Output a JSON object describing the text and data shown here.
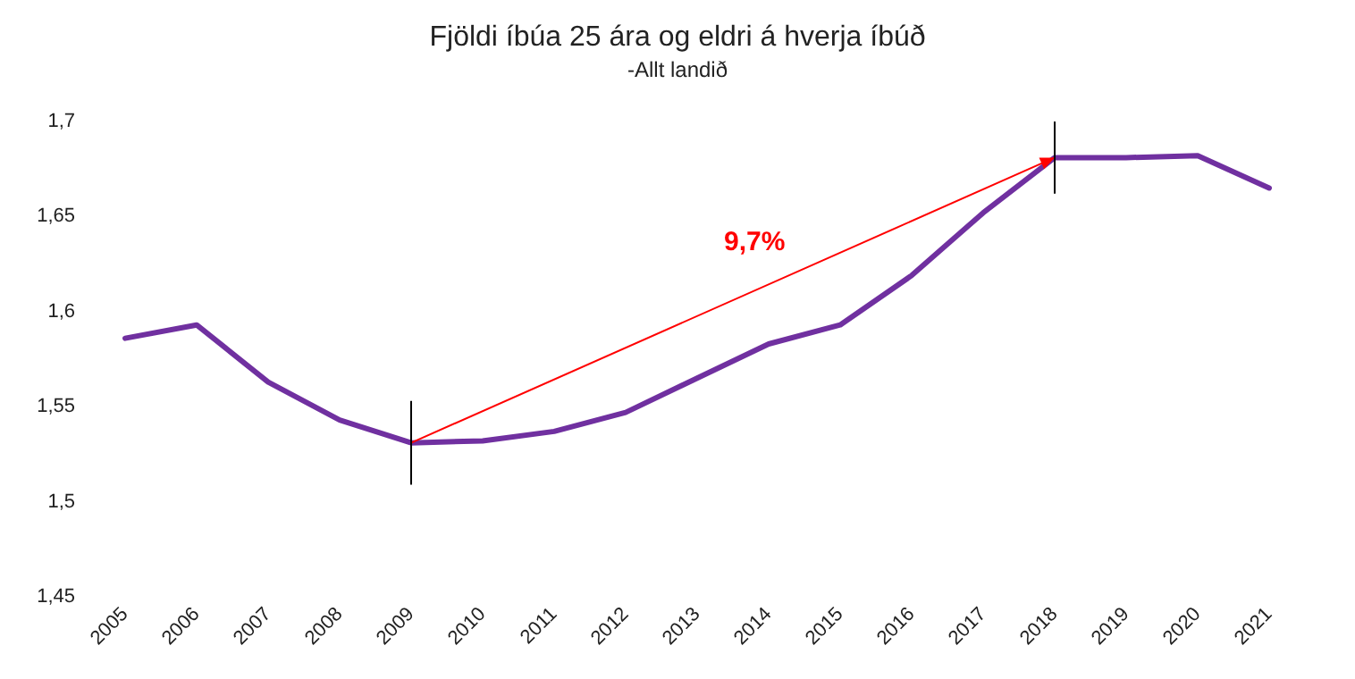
{
  "chart_data": {
    "type": "line",
    "title": "Fjöldi íbúa 25 ára og eldri á hverja íbúð",
    "subtitle": "-Allt landið",
    "categories": [
      "2005",
      "2006",
      "2007",
      "2008",
      "2009",
      "2010",
      "2011",
      "2012",
      "2013",
      "2014",
      "2015",
      "2016",
      "2017",
      "2018",
      "2019",
      "2020",
      "2021"
    ],
    "series": [
      {
        "color": "#7030a0",
        "values": [
          1.586,
          1.593,
          1.563,
          1.543,
          1.531,
          1.532,
          1.537,
          1.547,
          1.565,
          1.583,
          1.593,
          1.619,
          1.652,
          1.681,
          1.681,
          1.682,
          1.665
        ]
      },
      {
        "color": "#ff0000",
        "values": [
          null,
          null,
          null,
          null,
          1.531,
          null,
          null,
          null,
          null,
          null,
          null,
          null,
          null,
          1.681,
          null,
          null,
          null
        ],
        "errors": [
          null,
          null,
          null,
          null,
          0.022,
          null,
          null,
          null,
          null,
          null,
          null,
          null,
          null,
          0.019,
          null,
          null,
          null
        ]
      }
    ],
    "ylim": [
      1.45,
      1.7
    ],
    "yticks": [
      {
        "value": 1.45,
        "label": "1,45"
      },
      {
        "value": 1.5,
        "label": "1,5"
      },
      {
        "value": 1.55,
        "label": "1,55"
      },
      {
        "value": 1.6,
        "label": "1,6"
      },
      {
        "value": 1.65,
        "label": "1,65"
      },
      {
        "value": 1.7,
        "label": "1,7"
      }
    ],
    "annotations": [
      "9,7%"
    ],
    "grid": false
  }
}
